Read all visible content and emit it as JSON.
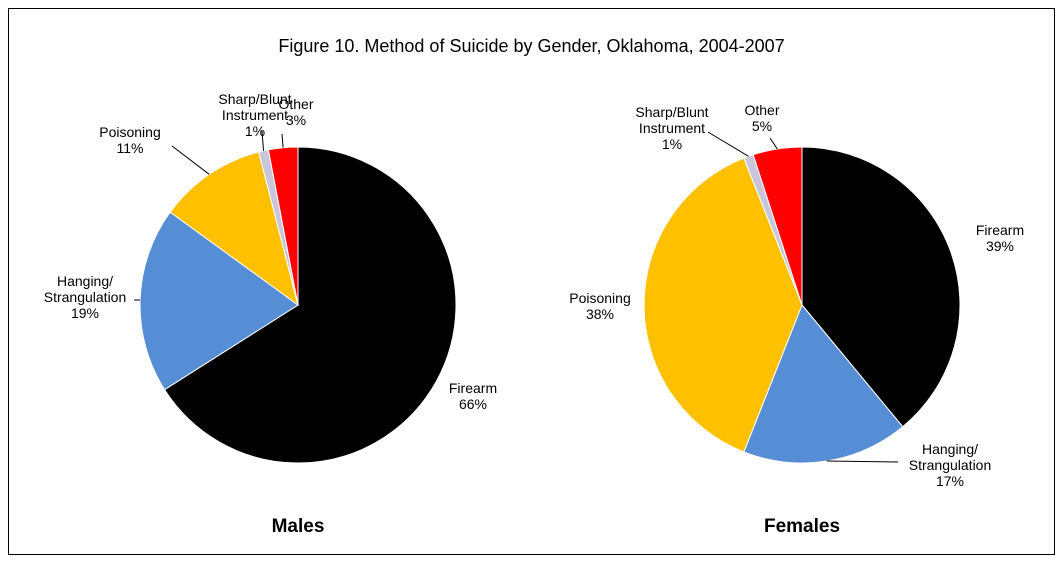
{
  "title": "Figure 10. Method of Suicide by Gender, Oklahoma, 2004-2007",
  "chart_data": [
    {
      "type": "pie",
      "label": "Males",
      "categories": [
        "Firearm",
        "Hanging/\nStrangulation",
        "Poisoning",
        "Sharp/Blunt\nInstrument",
        "Other"
      ],
      "values": [
        66,
        19,
        11,
        1,
        3
      ],
      "value_labels": [
        "66%",
        "19%",
        "11%",
        "1%",
        "3%"
      ],
      "colors": [
        "#000000",
        "#558ed5",
        "#ffc000",
        "#c9c6dc",
        "#ff0000"
      ]
    },
    {
      "type": "pie",
      "label": "Females",
      "categories": [
        "Firearm",
        "Hanging/\nStrangulation",
        "Poisoning",
        "Sharp/Blunt\nInstrument",
        "Other"
      ],
      "values": [
        39,
        17,
        38,
        1,
        5
      ],
      "value_labels": [
        "39%",
        "17%",
        "38%",
        "1%",
        "5%"
      ],
      "colors": [
        "#000000",
        "#558ed5",
        "#ffc000",
        "#c9c6dc",
        "#ff0000"
      ]
    }
  ]
}
